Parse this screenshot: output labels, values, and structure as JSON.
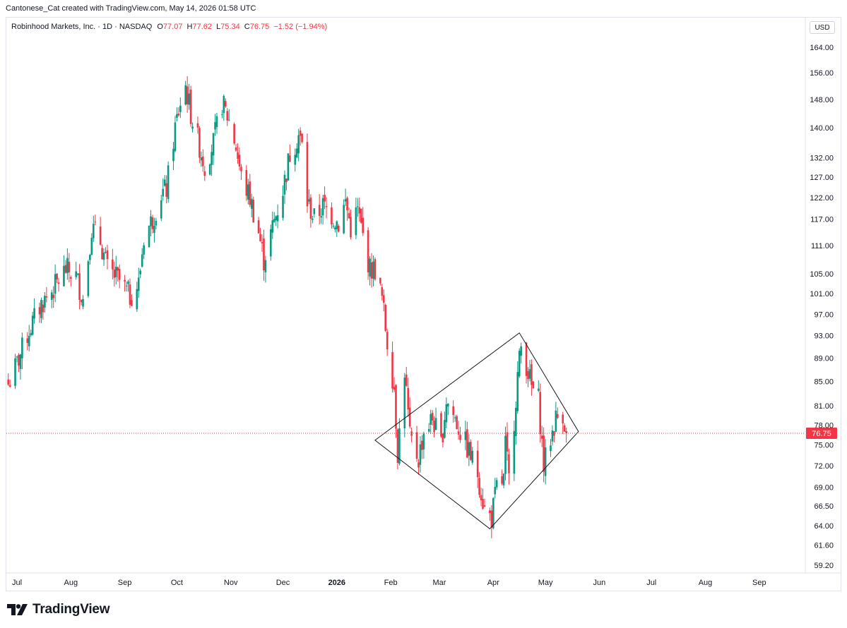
{
  "header": {
    "attribution": "Cantonese_Cat created with TradingView.com, May 14, 2026 01:58 UTC"
  },
  "legend": {
    "symbol": "Robinhood Markets, Inc. · 1D · NASDAQ",
    "open_label": "O",
    "open": "77.07",
    "high_label": "H",
    "high": "77.62",
    "low_label": "L",
    "low": "75.34",
    "close_label": "C",
    "close": "76.75",
    "change": "−1.52 (−1.94%)"
  },
  "currency_button": "USD",
  "brand": {
    "name": "TradingView"
  },
  "colors": {
    "up": "#089981",
    "down": "#f23645",
    "last_price_line": "#f23645",
    "pattern_lines": "#131722",
    "axis_text": "#131722"
  },
  "chart_data": {
    "type": "candlestick",
    "interval": "1D",
    "y_scale": "log",
    "y_ticks": [
      "164.00",
      "156.00",
      "148.00",
      "140.00",
      "132.00",
      "127.00",
      "122.00",
      "117.00",
      "111.00",
      "105.00",
      "101.00",
      "97.00",
      "93.00",
      "89.00",
      "85.00",
      "81.00",
      "78.00",
      "75.00",
      "72.00",
      "69.00",
      "66.50",
      "64.00",
      "61.60",
      "59.20"
    ],
    "x_ticks": [
      {
        "label": "Jul",
        "date": "2025-07-01",
        "bold": false
      },
      {
        "label": "Aug",
        "date": "2025-08-01",
        "bold": false
      },
      {
        "label": "Sep",
        "date": "2025-09-01",
        "bold": false
      },
      {
        "label": "Oct",
        "date": "2025-10-01",
        "bold": false
      },
      {
        "label": "Nov",
        "date": "2025-11-01",
        "bold": false
      },
      {
        "label": "Dec",
        "date": "2025-12-01",
        "bold": false
      },
      {
        "label": "2026",
        "date": "2026-01-01",
        "bold": true
      },
      {
        "label": "Feb",
        "date": "2026-02-01",
        "bold": false
      },
      {
        "label": "Mar",
        "date": "2026-03-01",
        "bold": false
      },
      {
        "label": "Apr",
        "date": "2026-04-01",
        "bold": false
      },
      {
        "label": "May",
        "date": "2026-05-01",
        "bold": false
      },
      {
        "label": "Jun",
        "date": "2026-06-01",
        "bold": false
      },
      {
        "label": "Jul",
        "date": "2026-07-01",
        "bold": false
      },
      {
        "label": "Aug",
        "date": "2026-08-01",
        "bold": false
      },
      {
        "label": "Sep",
        "date": "2026-09-01",
        "bold": false
      }
    ],
    "last_price": 76.75,
    "last_price_label": "76.75",
    "closes": [
      {
        "date": "2025-06-26",
        "close": 84.5
      },
      {
        "date": "2025-07-01",
        "close": 88.0
      },
      {
        "date": "2025-07-08",
        "close": 94.0
      },
      {
        "date": "2025-07-15",
        "close": 99.0
      },
      {
        "date": "2025-07-22",
        "close": 102.0
      },
      {
        "date": "2025-07-29",
        "close": 106.0
      },
      {
        "date": "2025-08-04",
        "close": 104.5
      },
      {
        "date": "2025-08-08",
        "close": 100.0
      },
      {
        "date": "2025-08-13",
        "close": 115.0
      },
      {
        "date": "2025-08-18",
        "close": 112.0
      },
      {
        "date": "2025-08-22",
        "close": 106.0
      },
      {
        "date": "2025-08-28",
        "close": 104.0
      },
      {
        "date": "2025-09-04",
        "close": 100.5
      },
      {
        "date": "2025-09-09",
        "close": 103.0
      },
      {
        "date": "2025-09-12",
        "close": 113.0
      },
      {
        "date": "2025-09-17",
        "close": 117.0
      },
      {
        "date": "2025-09-22",
        "close": 123.0
      },
      {
        "date": "2025-09-25",
        "close": 124.0
      },
      {
        "date": "2025-09-30",
        "close": 140.0
      },
      {
        "date": "2025-10-03",
        "close": 147.0
      },
      {
        "date": "2025-10-06",
        "close": 152.0
      },
      {
        "date": "2025-10-09",
        "close": 144.0
      },
      {
        "date": "2025-10-14",
        "close": 135.0
      },
      {
        "date": "2025-10-17",
        "close": 130.0
      },
      {
        "date": "2025-10-22",
        "close": 136.0
      },
      {
        "date": "2025-10-27",
        "close": 147.0
      },
      {
        "date": "2025-10-31",
        "close": 142.0
      },
      {
        "date": "2025-11-04",
        "close": 135.0
      },
      {
        "date": "2025-11-07",
        "close": 127.0
      },
      {
        "date": "2025-11-12",
        "close": 122.0
      },
      {
        "date": "2025-11-17",
        "close": 114.0
      },
      {
        "date": "2025-11-20",
        "close": 108.0
      },
      {
        "date": "2025-11-25",
        "close": 115.0
      },
      {
        "date": "2025-12-01",
        "close": 124.0
      },
      {
        "date": "2025-12-05",
        "close": 133.0
      },
      {
        "date": "2025-12-10",
        "close": 138.0
      },
      {
        "date": "2025-12-12",
        "close": 135.0
      },
      {
        "date": "2025-12-15",
        "close": 121.0
      },
      {
        "date": "2025-12-19",
        "close": 117.0
      },
      {
        "date": "2025-12-24",
        "close": 120.0
      },
      {
        "date": "2025-12-29",
        "close": 118.0
      },
      {
        "date": "2026-01-02",
        "close": 116.0
      },
      {
        "date": "2026-01-06",
        "close": 121.0
      },
      {
        "date": "2026-01-09",
        "close": 115.0
      },
      {
        "date": "2026-01-13",
        "close": 119.0
      },
      {
        "date": "2026-01-16",
        "close": 113.0
      },
      {
        "date": "2026-01-20",
        "close": 106.0
      },
      {
        "date": "2026-01-23",
        "close": 106.0
      },
      {
        "date": "2026-01-27",
        "close": 100.0
      },
      {
        "date": "2026-01-30",
        "close": 92.0
      },
      {
        "date": "2026-02-03",
        "close": 84.0
      },
      {
        "date": "2026-02-05",
        "close": 74.0
      },
      {
        "date": "2026-02-07",
        "close": 80.0
      },
      {
        "date": "2026-02-09",
        "close": 87.0
      },
      {
        "date": "2026-02-12",
        "close": 76.0
      },
      {
        "date": "2026-02-17",
        "close": 73.0
      },
      {
        "date": "2026-02-20",
        "close": 77.0
      },
      {
        "date": "2026-02-25",
        "close": 79.0
      },
      {
        "date": "2026-03-02",
        "close": 75.0
      },
      {
        "date": "2026-03-05",
        "close": 82.0
      },
      {
        "date": "2026-03-10",
        "close": 79.0
      },
      {
        "date": "2026-03-13",
        "close": 77.0
      },
      {
        "date": "2026-03-18",
        "close": 74.0
      },
      {
        "date": "2026-03-23",
        "close": 71.0
      },
      {
        "date": "2026-03-27",
        "close": 66.0
      },
      {
        "date": "2026-03-31",
        "close": 65.0
      },
      {
        "date": "2026-04-03",
        "close": 69.0
      },
      {
        "date": "2026-04-07",
        "close": 70.0
      },
      {
        "date": "2026-04-08",
        "close": 75.0
      },
      {
        "date": "2026-04-10",
        "close": 70.0
      },
      {
        "date": "2026-04-13",
        "close": 79.0
      },
      {
        "date": "2026-04-15",
        "close": 86.0
      },
      {
        "date": "2026-04-17",
        "close": 91.0
      },
      {
        "date": "2026-04-20",
        "close": 88.0
      },
      {
        "date": "2026-04-23",
        "close": 84.0
      },
      {
        "date": "2026-04-27",
        "close": 82.0
      },
      {
        "date": "2026-04-30",
        "close": 72.0
      },
      {
        "date": "2026-05-04",
        "close": 76.0
      },
      {
        "date": "2026-05-07",
        "close": 79.0
      },
      {
        "date": "2026-05-11",
        "close": 80.0
      },
      {
        "date": "2026-05-13",
        "close": 76.75
      }
    ],
    "pattern": {
      "name": "diamond",
      "vertices": [
        {
          "date": "2026-01-23",
          "price": 75.7
        },
        {
          "date": "2026-04-16",
          "price": 93.5
        },
        {
          "date": "2026-05-20",
          "price": 77.0
        },
        {
          "date": "2026-03-30",
          "price": 63.6
        }
      ]
    }
  }
}
